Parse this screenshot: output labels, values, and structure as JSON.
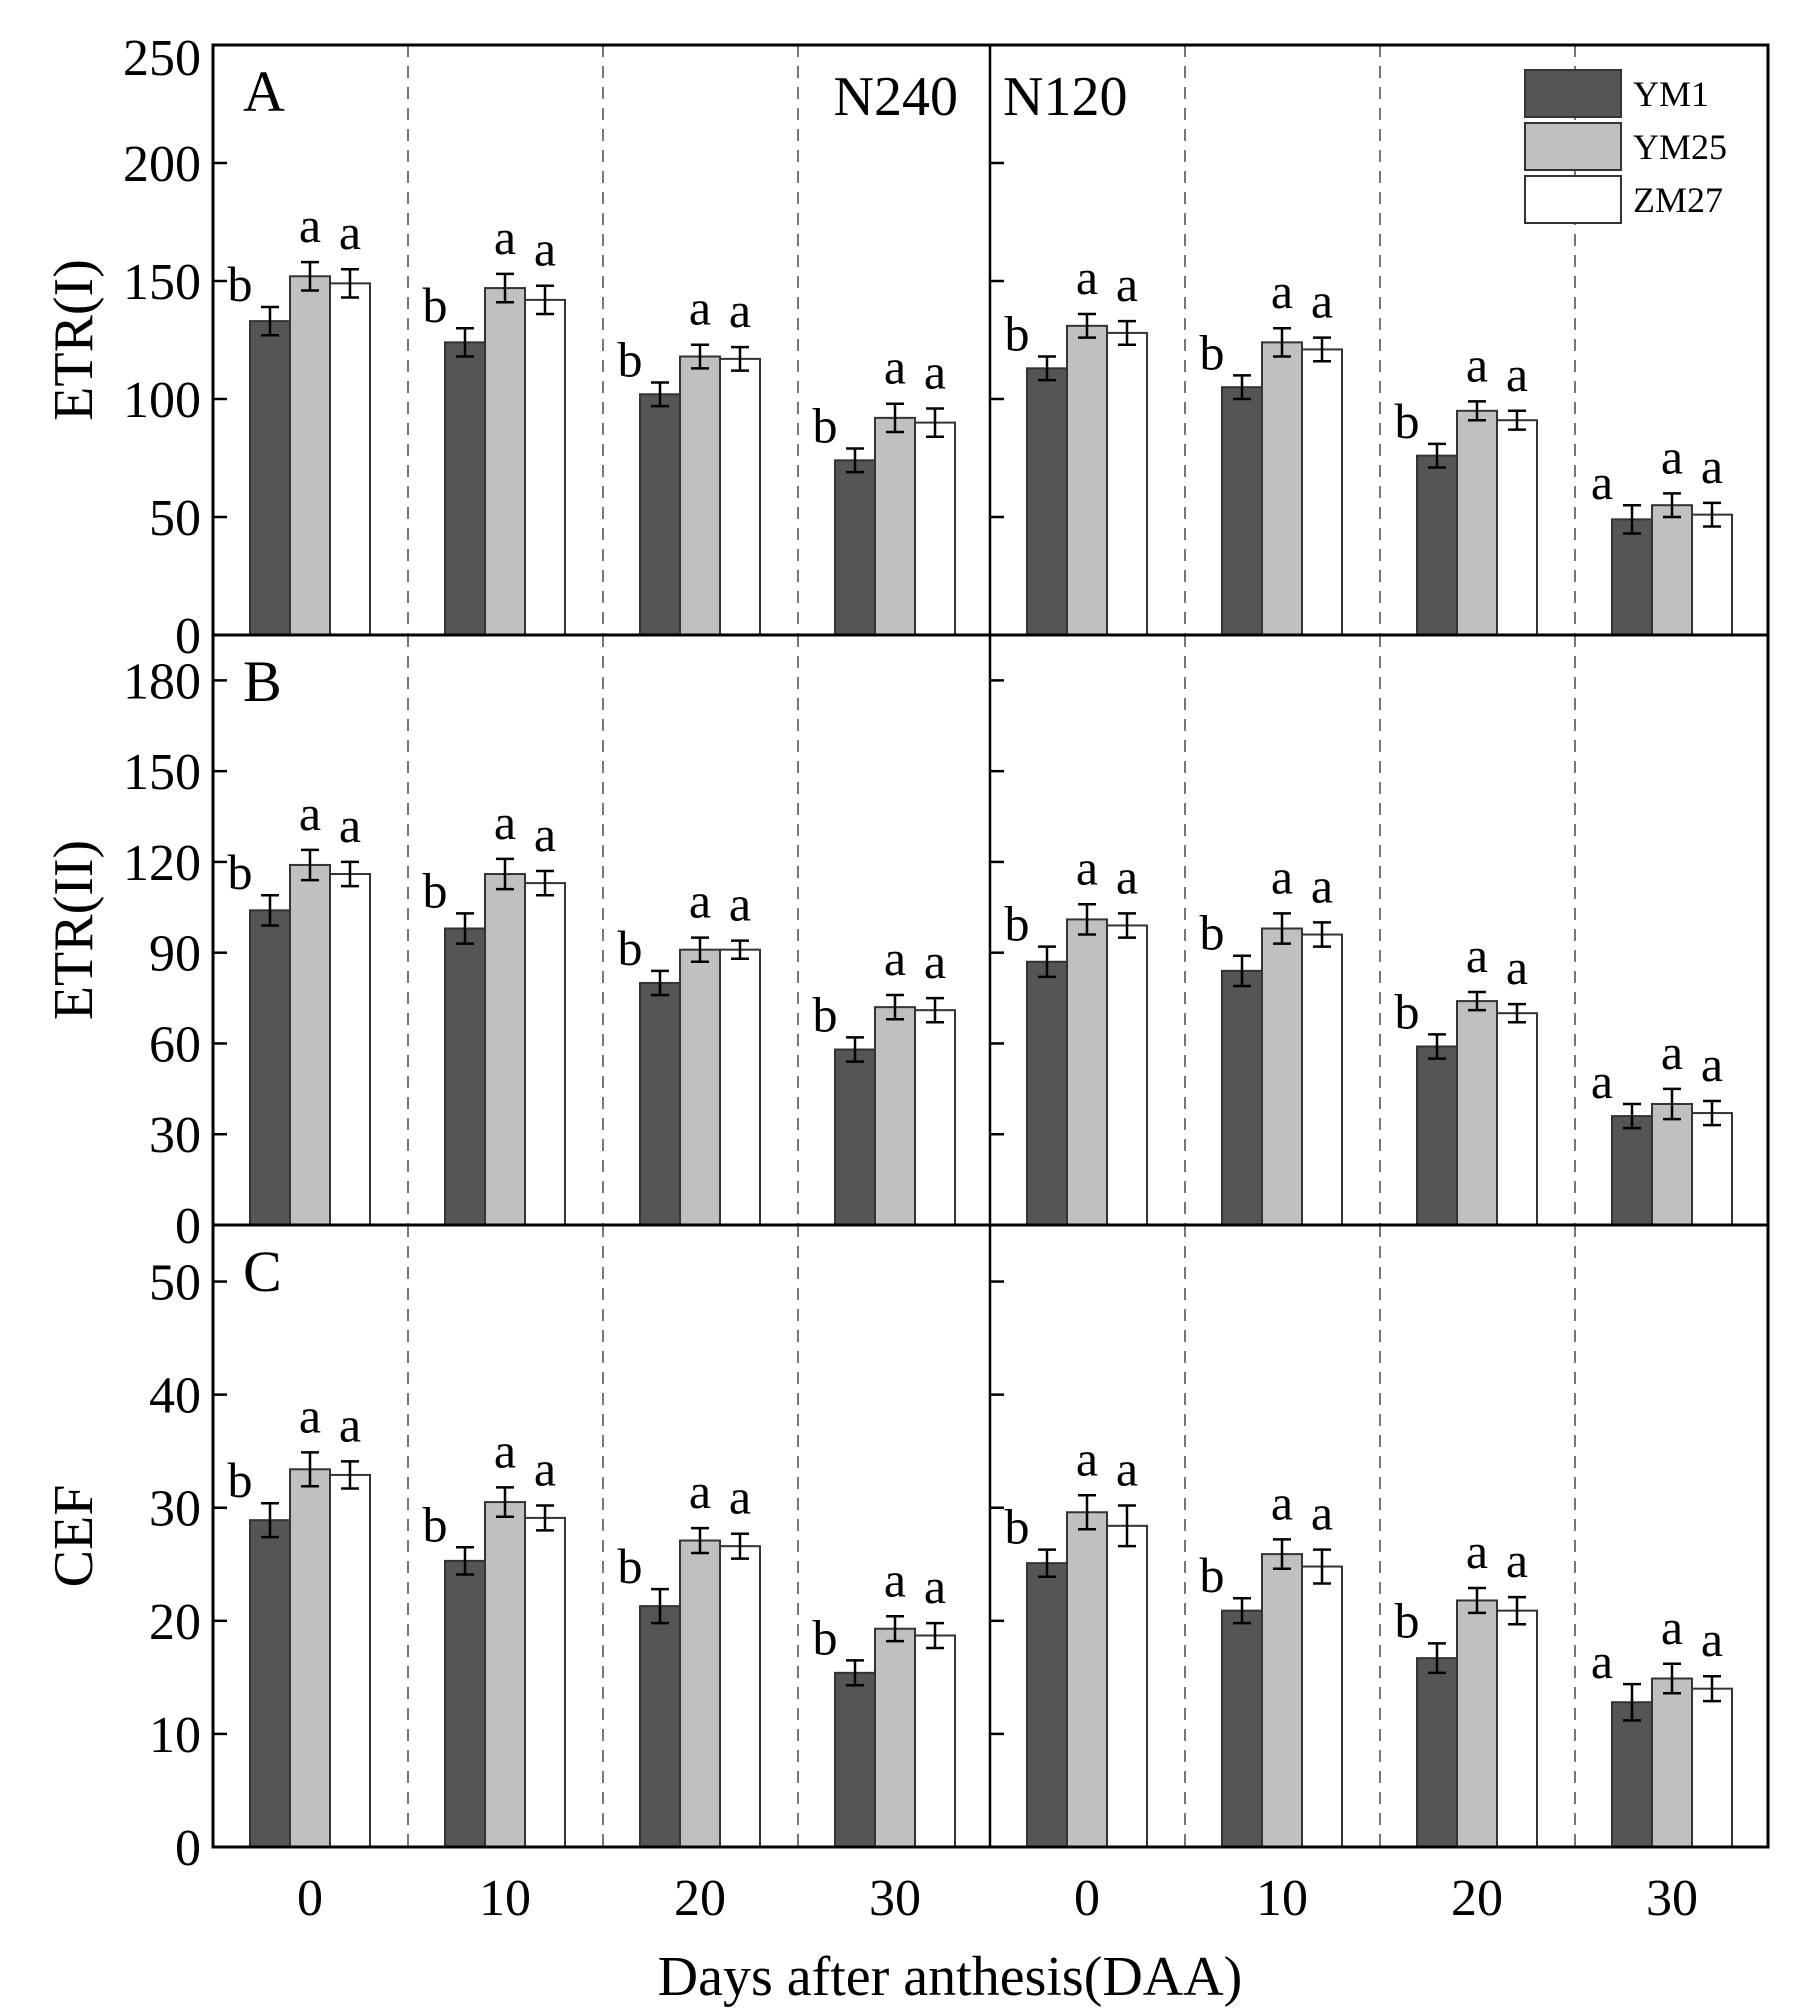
{
  "chart_data": {
    "type": "bar",
    "xlabel": "Days after anthesis(DAA)",
    "categories": [
      "0",
      "10",
      "20",
      "30"
    ],
    "groups": [
      "N240",
      "N120"
    ],
    "legend": [
      {
        "name": "YM1",
        "color": "#555555"
      },
      {
        "name": "YM25",
        "color": "#c0c0c0"
      },
      {
        "name": "ZM27",
        "color": "#ffffff"
      }
    ],
    "panels": [
      {
        "letter": "A",
        "ylabel": "ETR(I)",
        "ylim": [
          0,
          250
        ],
        "yticks": [
          0,
          50,
          100,
          150,
          200,
          250
        ],
        "data": {
          "N240": {
            "YM1": {
              "values": [
                133,
                124,
                102,
                74
              ],
              "errors": [
                6,
                6,
                5,
                5
              ],
              "letters": [
                "b",
                "b",
                "b",
                "b"
              ]
            },
            "YM25": {
              "values": [
                152,
                147,
                118,
                92
              ],
              "errors": [
                6,
                6,
                5,
                6
              ],
              "letters": [
                "a",
                "a",
                "a",
                "a"
              ]
            },
            "ZM27": {
              "values": [
                149,
                142,
                117,
                90
              ],
              "errors": [
                6,
                6,
                5,
                6
              ],
              "letters": [
                "a",
                "a",
                "a",
                "a"
              ]
            }
          },
          "N120": {
            "YM1": {
              "values": [
                113,
                105,
                76,
                49
              ],
              "errors": [
                5,
                5,
                5,
                6
              ],
              "letters": [
                "b",
                "b",
                "b",
                "a"
              ]
            },
            "YM25": {
              "values": [
                131,
                124,
                95,
                55
              ],
              "errors": [
                5,
                6,
                4,
                5
              ],
              "letters": [
                "a",
                "a",
                "a",
                "a"
              ]
            },
            "ZM27": {
              "values": [
                128,
                121,
                91,
                51
              ],
              "errors": [
                5,
                5,
                4,
                5
              ],
              "letters": [
                "a",
                "a",
                "a",
                "a"
              ]
            }
          }
        }
      },
      {
        "letter": "B",
        "ylabel": "ETR(II)",
        "ylim": [
          0,
          195
        ],
        "yticks": [
          0,
          30,
          60,
          90,
          120,
          150,
          180
        ],
        "data": {
          "N240": {
            "YM1": {
              "values": [
                104,
                98,
                80,
                58
              ],
              "errors": [
                5,
                5,
                4,
                4
              ],
              "letters": [
                "b",
                "b",
                "b",
                "b"
              ]
            },
            "YM25": {
              "values": [
                119,
                116,
                91,
                72
              ],
              "errors": [
                5,
                5,
                4,
                4
              ],
              "letters": [
                "a",
                "a",
                "a",
                "a"
              ]
            },
            "ZM27": {
              "values": [
                116,
                113,
                91,
                71
              ],
              "errors": [
                4,
                4,
                3,
                4
              ],
              "letters": [
                "a",
                "a",
                "a",
                "a"
              ]
            }
          },
          "N120": {
            "YM1": {
              "values": [
                87,
                84,
                59,
                36
              ],
              "errors": [
                5,
                5,
                4,
                4
              ],
              "letters": [
                "b",
                "b",
                "b",
                "a"
              ]
            },
            "YM25": {
              "values": [
                101,
                98,
                74,
                40
              ],
              "errors": [
                5,
                5,
                3,
                5
              ],
              "letters": [
                "a",
                "a",
                "a",
                "a"
              ]
            },
            "ZM27": {
              "values": [
                99,
                96,
                70,
                37
              ],
              "errors": [
                4,
                4,
                3,
                4
              ],
              "letters": [
                "a",
                "a",
                "a",
                "a"
              ]
            }
          }
        }
      },
      {
        "letter": "C",
        "ylabel": "CEF",
        "ylim": [
          0,
          55
        ],
        "yticks": [
          0,
          10,
          20,
          30,
          40,
          50
        ],
        "data": {
          "N240": {
            "YM1": {
              "values": [
                28.9,
                25.3,
                21.3,
                15.4
              ],
              "errors": [
                1.5,
                1.2,
                1.5,
                1.1
              ],
              "letters": [
                "b",
                "b",
                "b",
                "b"
              ]
            },
            "YM25": {
              "values": [
                33.4,
                30.5,
                27.1,
                19.3
              ],
              "errors": [
                1.5,
                1.3,
                1.1,
                1.1
              ],
              "letters": [
                "a",
                "a",
                "a",
                "a"
              ]
            },
            "ZM27": {
              "values": [
                32.9,
                29.1,
                26.6,
                18.7
              ],
              "errors": [
                1.2,
                1.1,
                1.1,
                1.1
              ],
              "letters": [
                "a",
                "a",
                "a",
                "a"
              ]
            }
          },
          "N120": {
            "YM1": {
              "values": [
                25.1,
                20.9,
                16.7,
                12.8
              ],
              "errors": [
                1.2,
                1.1,
                1.3,
                1.6
              ],
              "letters": [
                "b",
                "b",
                "b",
                "a"
              ]
            },
            "YM25": {
              "values": [
                29.6,
                25.9,
                21.8,
                14.9
              ],
              "errors": [
                1.5,
                1.3,
                1.1,
                1.3
              ],
              "letters": [
                "a",
                "a",
                "a",
                "a"
              ]
            },
            "ZM27": {
              "values": [
                28.4,
                24.8,
                20.9,
                14.0
              ],
              "errors": [
                1.8,
                1.5,
                1.2,
                1.1
              ],
              "letters": [
                "a",
                "a",
                "a",
                "a"
              ]
            }
          }
        }
      }
    ]
  }
}
